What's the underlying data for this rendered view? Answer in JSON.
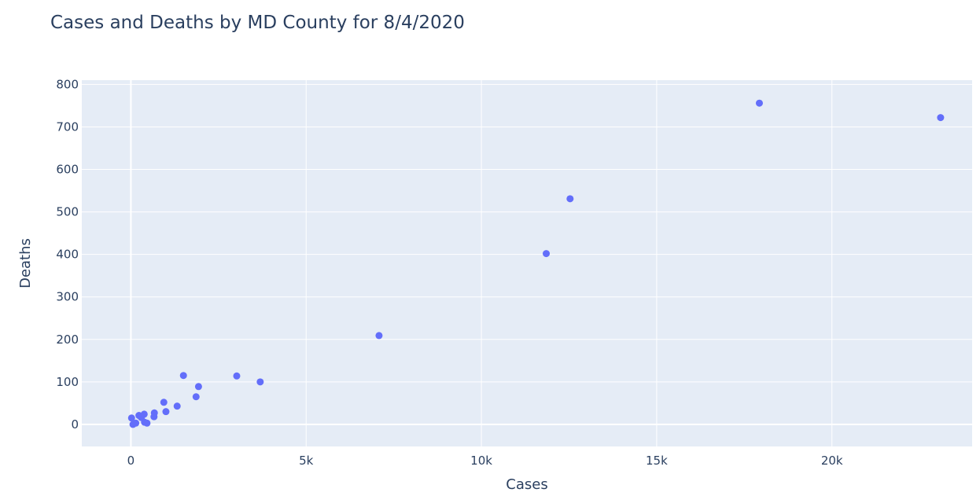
{
  "chart_data": {
    "type": "scatter",
    "title": "Cases and Deaths by MD County for 8/4/2020",
    "xlabel": "Cases",
    "ylabel": "Deaths",
    "xlim": [
      -1400,
      24000
    ],
    "ylim": [
      -52,
      810
    ],
    "x_ticks": [
      0,
      5000,
      10000,
      15000,
      20000
    ],
    "x_tick_labels": [
      "0",
      "5k",
      "10k",
      "15k",
      "20k"
    ],
    "y_ticks": [
      0,
      100,
      200,
      300,
      400,
      500,
      600,
      700,
      800
    ],
    "y_tick_labels": [
      "0",
      "100",
      "200",
      "300",
      "400",
      "500",
      "600",
      "700",
      "800"
    ],
    "grid": true,
    "marker_color": "#636efa",
    "plot_bgcolor": "#e5ecf6",
    "series": [
      {
        "points": [
          {
            "x": 20,
            "y": 15
          },
          {
            "x": 60,
            "y": 0
          },
          {
            "x": 140,
            "y": 3
          },
          {
            "x": 230,
            "y": 21
          },
          {
            "x": 300,
            "y": 16
          },
          {
            "x": 380,
            "y": 24
          },
          {
            "x": 390,
            "y": 5
          },
          {
            "x": 460,
            "y": 3
          },
          {
            "x": 660,
            "y": 18
          },
          {
            "x": 670,
            "y": 27
          },
          {
            "x": 940,
            "y": 52
          },
          {
            "x": 1000,
            "y": 30
          },
          {
            "x": 1320,
            "y": 43
          },
          {
            "x": 1500,
            "y": 115
          },
          {
            "x": 1860,
            "y": 65
          },
          {
            "x": 1930,
            "y": 89
          },
          {
            "x": 3020,
            "y": 114
          },
          {
            "x": 3690,
            "y": 100
          },
          {
            "x": 7080,
            "y": 209
          },
          {
            "x": 11850,
            "y": 402
          },
          {
            "x": 12530,
            "y": 531
          },
          {
            "x": 17930,
            "y": 756
          },
          {
            "x": 23100,
            "y": 722
          }
        ]
      }
    ]
  }
}
